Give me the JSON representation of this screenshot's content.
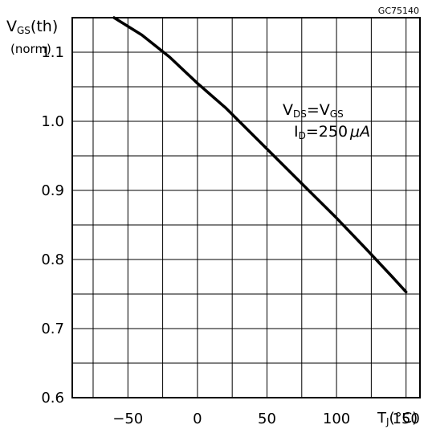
{
  "figure_id": "GC75140",
  "chart_data": {
    "type": "line",
    "title": "",
    "ylabel_main": "V",
    "ylabel_sub": "GS",
    "ylabel_tail": "(th)",
    "ylabel_line2": "(norm)",
    "xlabel_main": "T",
    "xlabel_sub": "J",
    "xlabel_tail": "(°C)",
    "xlim": [
      -90,
      160
    ],
    "ylim": [
      0.6,
      1.15
    ],
    "x_ticks": [
      -50,
      0,
      50,
      100,
      150
    ],
    "x_tick_labels": [
      "−50",
      "0",
      "50",
      "100",
      "150"
    ],
    "y_ticks": [
      0.6,
      0.7,
      0.8,
      0.9,
      1.0,
      1.1
    ],
    "y_tick_labels": [
      "0.6",
      "0.7",
      "0.8",
      "0.9",
      "1.0",
      "1.1"
    ],
    "grid": true,
    "grid_x_step": 25,
    "grid_y_step": 0.05,
    "series": [
      {
        "name": "",
        "color": "#000000",
        "x": [
          -60,
          -40,
          -20,
          0,
          20,
          40,
          60,
          80,
          100,
          120,
          140,
          150
        ],
        "y": [
          1.15,
          1.125,
          1.093,
          1.055,
          1.02,
          0.98,
          0.94,
          0.9,
          0.86,
          0.818,
          0.775,
          0.753
        ]
      }
    ],
    "annotation": {
      "line1_main": "V",
      "line1_sub1": "DS",
      "line1_eq": "=V",
      "line1_sub2": "GS",
      "line2_main": "I",
      "line2_sub": "D",
      "line2_value": "=250",
      "line2_unit": "μA"
    }
  }
}
